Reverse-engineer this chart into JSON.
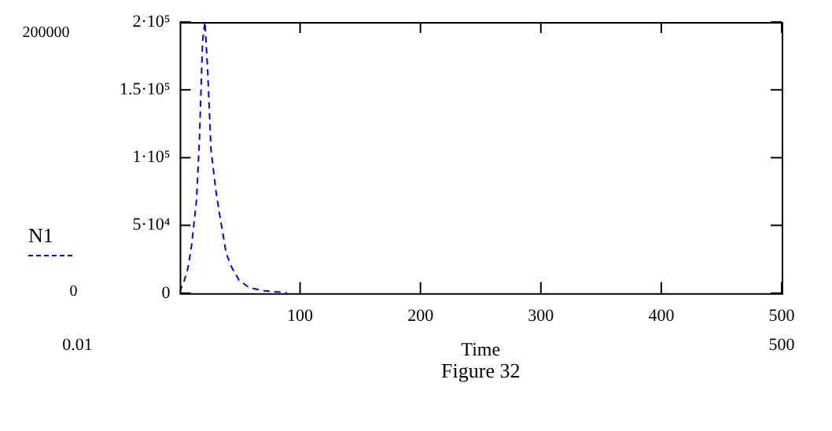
{
  "chart_data": {
    "type": "line",
    "xlabel": "Time",
    "annotations": [
      "200000",
      "0",
      "0.01",
      "500",
      "Figure 32"
    ],
    "series": [
      {
        "name": "N1",
        "color": "#0000ff",
        "line_style": "dashed",
        "x": [
          0.01,
          3.7,
          7,
          10,
          14,
          16.4,
          19,
          21,
          23.3,
          26,
          30,
          33,
          38.6,
          43,
          49.4,
          58,
          71,
          89
        ],
        "values": [
          1000,
          9000,
          19000,
          36000,
          69000,
          113000,
          186000,
          200000,
          163000,
          106000,
          76000,
          59000,
          29500,
          19500,
          9500,
          4000,
          1700,
          300
        ]
      }
    ],
    "xlim": [
      0.01,
      500
    ],
    "xticks": [
      100,
      200,
      300,
      400,
      500
    ],
    "ylim": [
      0,
      200000
    ],
    "yticks": [
      0,
      {
        "value": 50000,
        "label": "5·10⁴"
      },
      {
        "value": 100000,
        "label": "1·10⁵"
      },
      {
        "value": 150000,
        "label": "1.5·10⁵"
      },
      {
        "value": 200000,
        "label": "2·10⁵"
      }
    ],
    "grid": false,
    "legend": "left",
    "marker": "none"
  }
}
